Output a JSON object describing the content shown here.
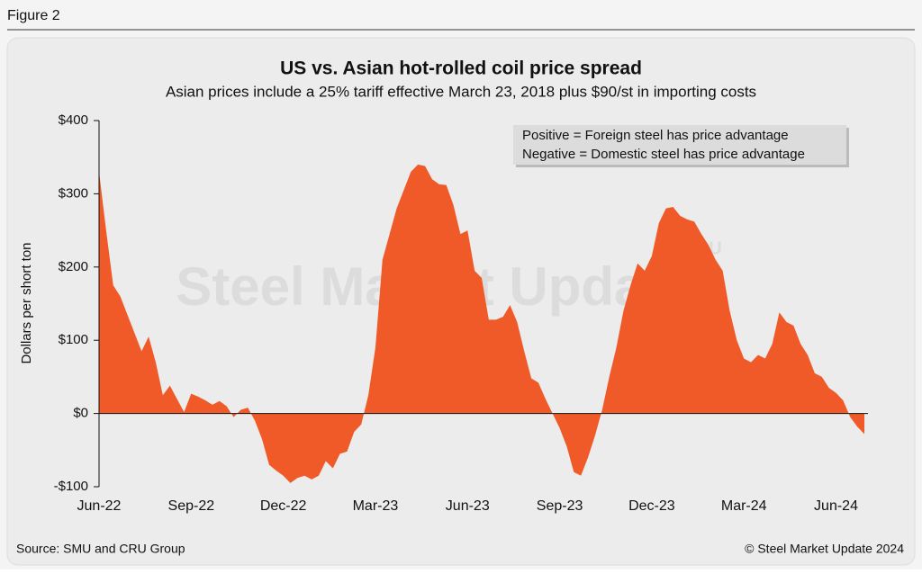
{
  "figure_label": "Figure 2",
  "source": "Source: SMU and CRU Group",
  "copyright": "© Steel Market Update 2024",
  "chart_data": {
    "type": "area",
    "title": "US vs. Asian hot-rolled coil price spread",
    "subtitle": "Asian prices include a 25% tariff effective March 23, 2018 plus $90/st in importing costs",
    "y_label": "Dollars per short ton",
    "annotations": [
      "Positive = Foreign steel has price advantage",
      "Negative = Domestic steel has price advantage"
    ],
    "watermark": [
      "Steel Market Update",
      "CRU"
    ],
    "color": "#f05a28",
    "categories": [
      "Jun-22",
      null,
      null,
      null,
      null,
      null,
      null,
      null,
      null,
      null,
      null,
      null,
      null,
      "Sep-22",
      null,
      null,
      null,
      null,
      null,
      null,
      null,
      null,
      null,
      null,
      null,
      null,
      "Dec-22",
      null,
      null,
      null,
      null,
      null,
      null,
      null,
      null,
      null,
      null,
      null,
      null,
      "Mar-23",
      null,
      null,
      null,
      null,
      null,
      null,
      null,
      null,
      null,
      null,
      null,
      null,
      "Jun-23",
      null,
      null,
      null,
      null,
      null,
      null,
      null,
      null,
      null,
      null,
      null,
      null,
      "Sep-23",
      null,
      null,
      null,
      null,
      null,
      null,
      null,
      null,
      null,
      null,
      null,
      null,
      "Dec-23",
      null,
      null,
      null,
      null,
      null,
      null,
      null,
      null,
      null,
      null,
      null,
      null,
      "Mar-24",
      null,
      null,
      null,
      null,
      null,
      null,
      null,
      null,
      null,
      null,
      null,
      null,
      "Jun-24",
      null,
      null,
      null,
      null
    ],
    "values": [
      330,
      250,
      175,
      160,
      135,
      110,
      85,
      105,
      70,
      25,
      38,
      20,
      2,
      27,
      23,
      18,
      12,
      17,
      10,
      -5,
      5,
      8,
      -10,
      -35,
      -70,
      -78,
      -85,
      -95,
      -88,
      -85,
      -90,
      -85,
      -65,
      -75,
      -55,
      -52,
      -25,
      -15,
      25,
      90,
      210,
      245,
      280,
      305,
      330,
      340,
      338,
      320,
      313,
      312,
      285,
      245,
      250,
      195,
      185,
      128,
      128,
      132,
      148,
      125,
      85,
      48,
      42,
      20,
      0,
      -20,
      -45,
      -80,
      -85,
      -60,
      -30,
      5,
      50,
      90,
      140,
      175,
      205,
      195,
      215,
      260,
      280,
      282,
      270,
      265,
      262,
      245,
      230,
      210,
      195,
      140,
      100,
      75,
      70,
      80,
      75,
      95,
      138,
      125,
      120,
      95,
      80,
      55,
      50,
      35,
      28,
      18,
      -5,
      -18,
      -28
    ],
    "ylim": [
      -100,
      400
    ],
    "yticks": [
      {
        "value": -100,
        "label": "-$100"
      },
      {
        "value": 0,
        "label": "$0"
      },
      {
        "value": 100,
        "label": "$100"
      },
      {
        "value": 200,
        "label": "$200"
      },
      {
        "value": 300,
        "label": "$300"
      },
      {
        "value": 400,
        "label": "$400"
      }
    ]
  }
}
